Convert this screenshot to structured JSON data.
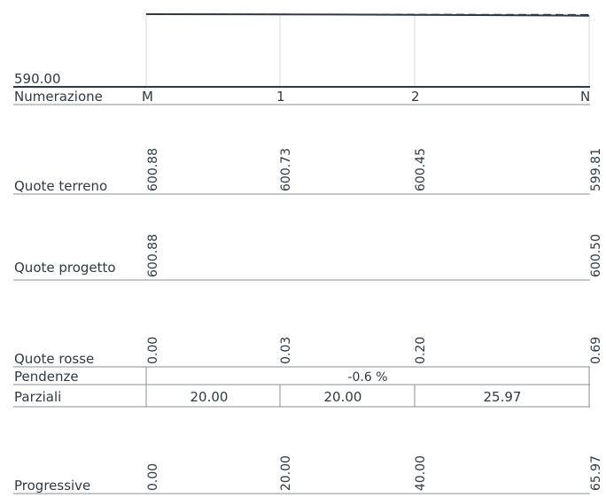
{
  "datum": "590.00",
  "stations": [
    "M",
    "1",
    "2",
    "N"
  ],
  "progressive_values": [
    0,
    20,
    40,
    65.97
  ],
  "ground_elevations": [
    600.88,
    600.73,
    600.45,
    599.81
  ],
  "project_elevations": [
    600.88,
    600.5
  ],
  "rows": {
    "numerazione": "Numerazione",
    "quote_terreno": "Quote terreno",
    "quote_progetto": "Quote progetto",
    "quote_rosse": "Quote rosse",
    "pendenze": "Pendenze",
    "parziali": "Parziali",
    "progressive": "Progressive"
  },
  "values": {
    "quote_terreno": [
      "600.88",
      "600.73",
      "600.45",
      "599.81"
    ],
    "quote_progetto": [
      "600.88",
      "600.50"
    ],
    "quote_rosse": [
      "0.00",
      "0.03",
      "0.20",
      "0.69"
    ],
    "pendenze": "-0.6 %",
    "parziali": [
      "20.00",
      "20.00",
      "25.97"
    ],
    "progressive": [
      "0.00",
      "20.00",
      "40.00",
      "65.97"
    ]
  },
  "colors": {
    "line": "#2f3a44",
    "grid": "#d6dade",
    "table_line": "#8a9096"
  }
}
